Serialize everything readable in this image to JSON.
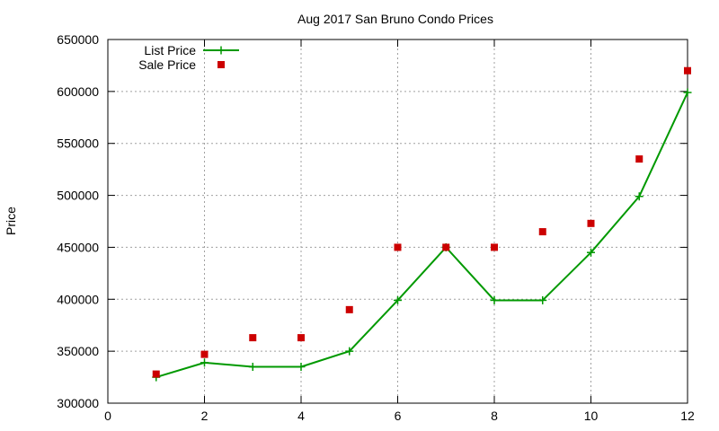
{
  "chart_data": {
    "type": "line",
    "title": "Aug 2017 San Bruno Condo Prices",
    "xlabel": "",
    "ylabel": "Price",
    "xlim": [
      0,
      12
    ],
    "ylim": [
      300000,
      650000
    ],
    "x_ticks": [
      0,
      2,
      4,
      6,
      8,
      10,
      12
    ],
    "y_ticks": [
      300000,
      350000,
      400000,
      450000,
      500000,
      550000,
      600000,
      650000
    ],
    "grid": true,
    "legend_position": "top-left",
    "series": [
      {
        "name": "List Price",
        "style": "line-with-plus-markers",
        "color": "#009900",
        "x": [
          1,
          2,
          3,
          4,
          5,
          6,
          7,
          8,
          9,
          10,
          11,
          12
        ],
        "y": [
          325000,
          339000,
          335000,
          335000,
          350000,
          399000,
          450000,
          399000,
          399000,
          445000,
          499000,
          599000
        ]
      },
      {
        "name": "Sale Price",
        "style": "square-points",
        "color": "#cc0000",
        "x": [
          1,
          2,
          3,
          4,
          5,
          6,
          7,
          8,
          9,
          10,
          11,
          12
        ],
        "y": [
          328000,
          347000,
          363000,
          363000,
          390000,
          450000,
          450000,
          450000,
          465000,
          473000,
          535000,
          620000
        ]
      }
    ]
  }
}
